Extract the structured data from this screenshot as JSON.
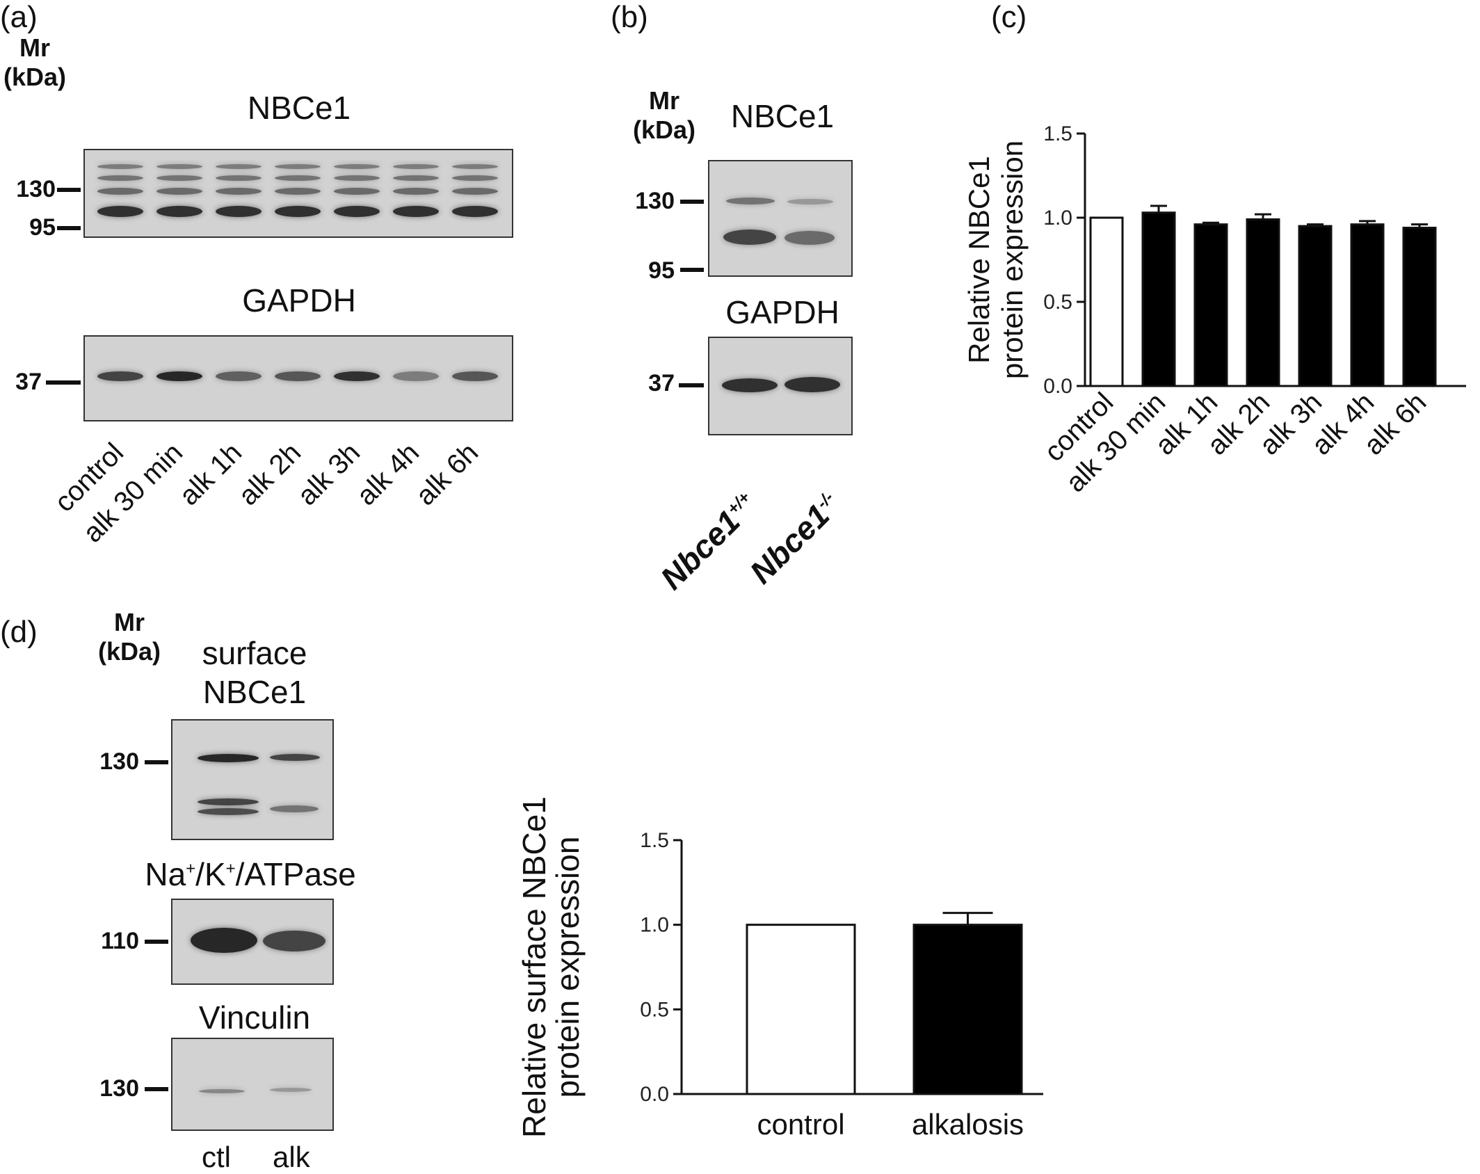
{
  "panel_a": {
    "label": "(a)",
    "mr_label": "Mr\n(kDa)",
    "nbce1_title": "NBCe1",
    "gapdh_title": "GAPDH",
    "markers_nbce1": [
      "130",
      "95"
    ],
    "markers_gapdh": [
      "37"
    ],
    "lanes": [
      "control",
      "alk 30 min",
      "alk 1h",
      "alk 2h",
      "alk 3h",
      "alk 4h",
      "alk 6h"
    ]
  },
  "panel_b": {
    "label": "(b)",
    "mr_label": "Mr\n(kDa)",
    "nbce1_title": "NBCe1",
    "gapdh_title": "GAPDH",
    "markers_nbce1": [
      "130",
      "95"
    ],
    "markers_gapdh": [
      "37"
    ],
    "lanes": [
      {
        "name": "Nbce1",
        "sup": "+/+"
      },
      {
        "name": "Nbce1",
        "sup": "-/-"
      }
    ]
  },
  "panel_c": {
    "label": "(c)"
  },
  "panel_d": {
    "label": "(d)",
    "mr_label": "Mr\n(kDa)",
    "surface_title_1": "surface",
    "surface_title_2": "NBCe1",
    "atpase_title": {
      "na": "Na",
      "k": "/K",
      "rest": "/ATPase",
      "sup": "+"
    },
    "vinculin_title": "Vinculin",
    "markers": [
      "130",
      "110",
      "130"
    ],
    "lanes": [
      "ctl",
      "alk"
    ]
  },
  "chart_data": [
    {
      "type": "bar",
      "panel": "(c)",
      "categories": [
        "control",
        "alk 30 min",
        "alk 1h",
        "alk 2h",
        "alk 3h",
        "alk 4h",
        "alk 6h"
      ],
      "values": [
        1.0,
        1.03,
        0.96,
        0.99,
        0.95,
        0.96,
        0.94
      ],
      "errors": [
        0.0,
        0.04,
        0.01,
        0.03,
        0.01,
        0.02,
        0.02
      ],
      "fills": [
        "#ffffff",
        "#000000",
        "#000000",
        "#000000",
        "#000000",
        "#000000",
        "#000000"
      ],
      "ylabel": [
        "Relative NBCe1",
        "protein expression"
      ],
      "ylim": [
        0,
        1.5
      ],
      "yticks": [
        "0.0",
        "0.5",
        "1.0",
        "1.5"
      ],
      "grid": false
    },
    {
      "type": "bar",
      "panel": "(d)",
      "categories": [
        "control",
        "alkalosis"
      ],
      "values": [
        1.0,
        1.0
      ],
      "errors": [
        0.0,
        0.07
      ],
      "fills": [
        "#ffffff",
        "#000000"
      ],
      "ylabel": [
        "Relative surface NBCe1",
        "protein expression"
      ],
      "ylim": [
        0,
        1.5
      ],
      "yticks": [
        "0.0",
        "0.5",
        "1.0",
        "1.5"
      ],
      "grid": false
    }
  ]
}
